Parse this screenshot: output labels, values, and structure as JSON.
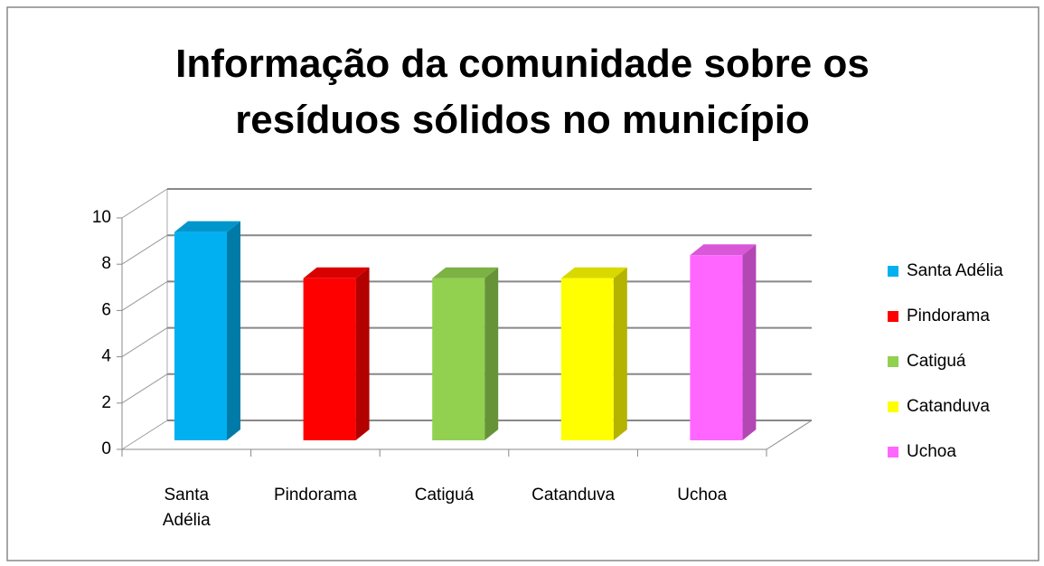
{
  "chart_data": {
    "type": "bar3d",
    "title": "Informação da comunidade sobre os resíduos sólidos no município",
    "categories": [
      "Santa Adélia",
      "Pindorama",
      "Catiguá",
      "Catanduva",
      "Uchoa"
    ],
    "values": [
      9,
      7,
      7,
      7,
      8
    ],
    "colors": [
      "#00b0f0",
      "#ff0000",
      "#92d050",
      "#ffff00",
      "#ff66ff"
    ],
    "ylim": [
      0,
      10
    ],
    "yticks": [
      0,
      2,
      4,
      6,
      8,
      10
    ],
    "grid": true,
    "legend": "right"
  }
}
